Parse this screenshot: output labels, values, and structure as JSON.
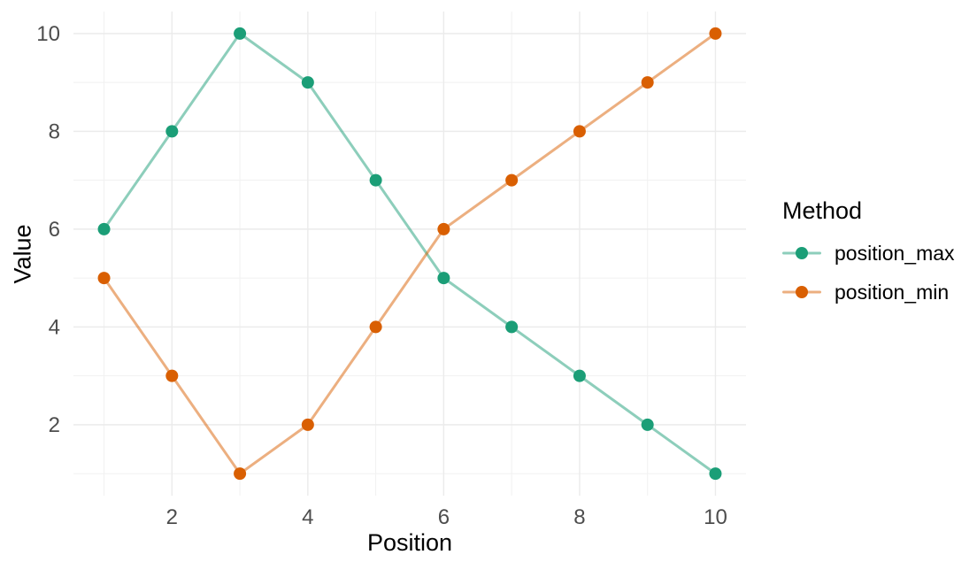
{
  "chart_data": {
    "type": "line",
    "title": "",
    "xlabel": "Position",
    "ylabel": "Value",
    "legend_title": "Method",
    "legend_position": "right",
    "x": [
      1,
      2,
      3,
      4,
      5,
      6,
      7,
      8,
      9,
      10
    ],
    "series": [
      {
        "name": "position_max",
        "values": [
          6,
          8,
          10,
          9,
          7,
          5,
          4,
          3,
          2,
          1
        ],
        "color": "#1B9E77",
        "line_color": "rgba(27,158,119,0.5)"
      },
      {
        "name": "position_min",
        "values": [
          5,
          3,
          1,
          2,
          4,
          6,
          7,
          8,
          9,
          10
        ],
        "color": "#D95F02",
        "line_color": "rgba(217,95,2,0.5)"
      }
    ],
    "xlim": [
      0.55,
      10.45
    ],
    "ylim": [
      0.55,
      10.45
    ],
    "x_ticks": [
      2,
      4,
      6,
      8,
      10
    ],
    "y_ticks": [
      2,
      4,
      6,
      8,
      10
    ],
    "x_minor_ticks": [
      1,
      3,
      5,
      7,
      9
    ],
    "y_minor_ticks": [
      1,
      3,
      5,
      7,
      9
    ],
    "grid": true,
    "theme": {
      "background": "#FFFFFF",
      "grid_major_color": "#EBEBEB",
      "grid_minor_color": "#F1F1F1",
      "tick_label_color": "#4D4D4D",
      "text_color": "#000000"
    }
  }
}
